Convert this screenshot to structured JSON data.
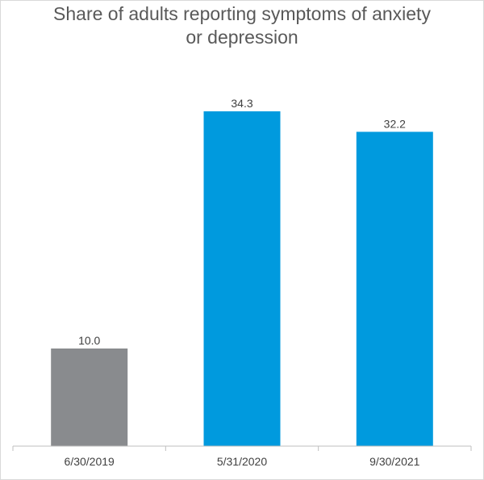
{
  "chart_data": {
    "type": "bar",
    "title_lines": [
      "Share of adults reporting symptoms of anxiety",
      "or depression"
    ],
    "categories": [
      "6/30/2019",
      "5/31/2020",
      "9/30/2021"
    ],
    "values": [
      10.0,
      34.3,
      32.2
    ],
    "value_labels": [
      "10.0",
      "34.3",
      "32.2"
    ],
    "bar_colors": [
      "#898b8e",
      "#009ade",
      "#009ade"
    ],
    "xlabel": "",
    "ylabel": "",
    "ylim": [
      0,
      34.3
    ],
    "grid": false,
    "legend": "none"
  }
}
